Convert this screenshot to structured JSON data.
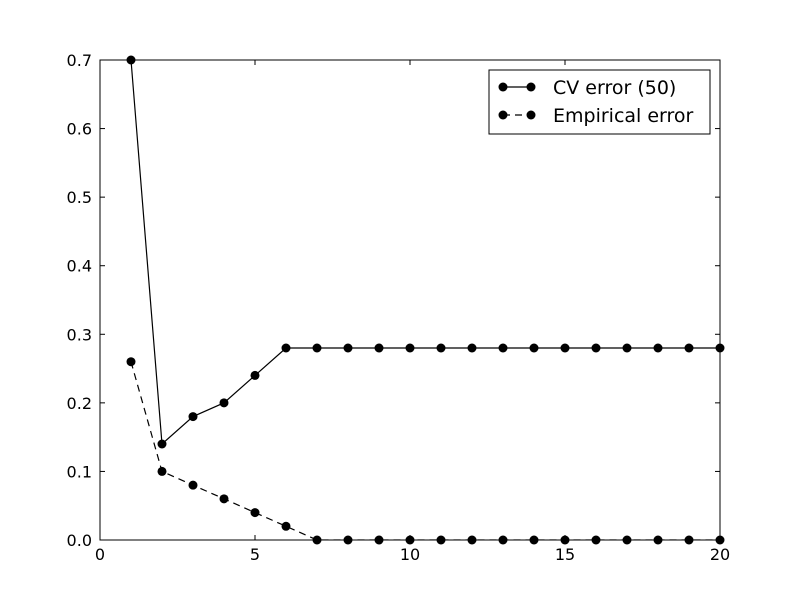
{
  "chart_data": {
    "type": "line",
    "title": "",
    "xlabel": "",
    "ylabel": "",
    "xlim": [
      0,
      20
    ],
    "ylim": [
      0.0,
      0.7
    ],
    "xticks": [
      0,
      5,
      10,
      15,
      20
    ],
    "xtick_labels": [
      "0",
      "5",
      "10",
      "15",
      "20"
    ],
    "yticks": [
      0.0,
      0.1,
      0.2,
      0.3,
      0.4,
      0.5,
      0.6,
      0.7
    ],
    "ytick_labels": [
      "0.0",
      "0.1",
      "0.2",
      "0.3",
      "0.4",
      "0.5",
      "0.6",
      "0.7"
    ],
    "grid": false,
    "legend_position": "top-right",
    "x": [
      1,
      2,
      3,
      4,
      5,
      6,
      7,
      8,
      9,
      10,
      11,
      12,
      13,
      14,
      15,
      16,
      17,
      18,
      19,
      20
    ],
    "series": [
      {
        "name": "CV error (50)",
        "line_style": "solid",
        "marker": "circle",
        "color": "#000000",
        "values": [
          0.7,
          0.14,
          0.18,
          0.2,
          0.24,
          0.28,
          0.28,
          0.28,
          0.28,
          0.28,
          0.28,
          0.28,
          0.28,
          0.28,
          0.28,
          0.28,
          0.28,
          0.28,
          0.28,
          0.28
        ]
      },
      {
        "name": "Empirical error",
        "line_style": "dashed",
        "marker": "circle",
        "color": "#000000",
        "values": [
          0.26,
          0.1,
          0.08,
          0.06,
          0.04,
          0.02,
          0.0,
          0.0,
          0.0,
          0.0,
          0.0,
          0.0,
          0.0,
          0.0,
          0.0,
          0.0,
          0.0,
          0.0,
          0.0,
          0.0
        ]
      }
    ]
  }
}
